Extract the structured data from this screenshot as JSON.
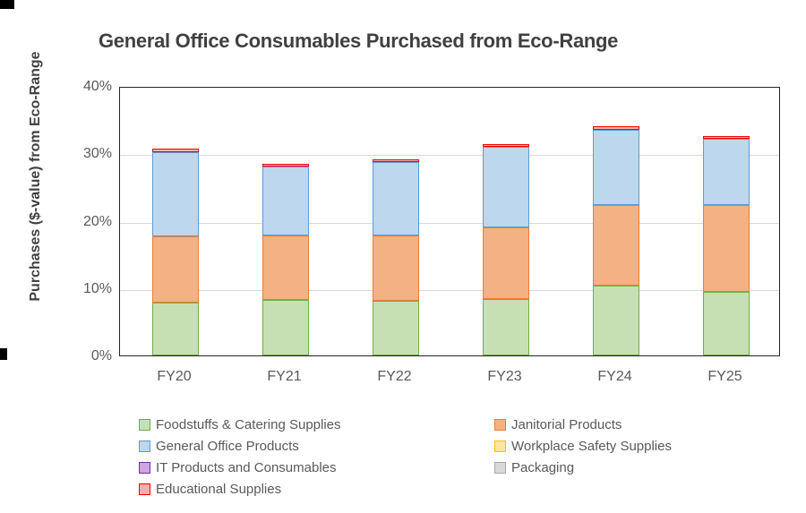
{
  "chart_data": {
    "type": "bar",
    "stacked": true,
    "title": "General Office Consumables Purchased from Eco-Range",
    "ylabel": "Purchases ($-value) from Eco-Range",
    "xlabel": "",
    "categories": [
      "FY20",
      "FY21",
      "FY22",
      "FY23",
      "FY24",
      "FY25"
    ],
    "series": [
      {
        "name": "Foodstuffs & Catering Supplies",
        "fill": "#C6E0B4",
        "border": "#70AD47",
        "values": [
          7.8,
          8.2,
          8.1,
          8.4,
          10.4,
          9.4
        ]
      },
      {
        "name": "Janitorial Products",
        "fill": "#F4B183",
        "border": "#ED7D31",
        "values": [
          9.9,
          9.6,
          9.7,
          10.6,
          11.9,
          12.9
        ]
      },
      {
        "name": "General Office Products",
        "fill": "#BDD7EE",
        "border": "#5B9BD5",
        "values": [
          12.5,
          10.2,
          10.9,
          11.9,
          11.2,
          9.8
        ]
      },
      {
        "name": "Workplace Safety Supplies",
        "fill": "#FFE699",
        "border": "#FFC000",
        "values": [
          0,
          0,
          0,
          0,
          0,
          0
        ]
      },
      {
        "name": "IT Products and Consumables",
        "fill": "#CBA6E3",
        "border": "#7030A0",
        "values": [
          0,
          0,
          0,
          0,
          0,
          0
        ]
      },
      {
        "name": "Packaging",
        "fill": "#D9D9D9",
        "border": "#A6A6A6",
        "values": [
          0,
          0,
          0,
          0,
          0,
          0
        ]
      },
      {
        "name": "Educational Supplies",
        "fill": "#F5AFA9",
        "border": "#FF0000",
        "values": [
          0.5,
          0.4,
          0.4,
          0.5,
          0.5,
          0.4
        ]
      }
    ],
    "totals": [
      30.7,
      28.4,
      29.1,
      31.4,
      34.0,
      32.5
    ],
    "ylim": [
      0,
      40
    ],
    "ytick_values": [
      0,
      10,
      20,
      30,
      40
    ],
    "yticks": [
      "0%",
      "10%",
      "20%",
      "30%",
      "40%"
    ],
    "grid": true,
    "legend_position": "bottom",
    "colors": {
      "title_text": "#404040",
      "axis_text": "#595959",
      "gridline": "#D9D9D9",
      "plot_border": "#262626"
    }
  }
}
